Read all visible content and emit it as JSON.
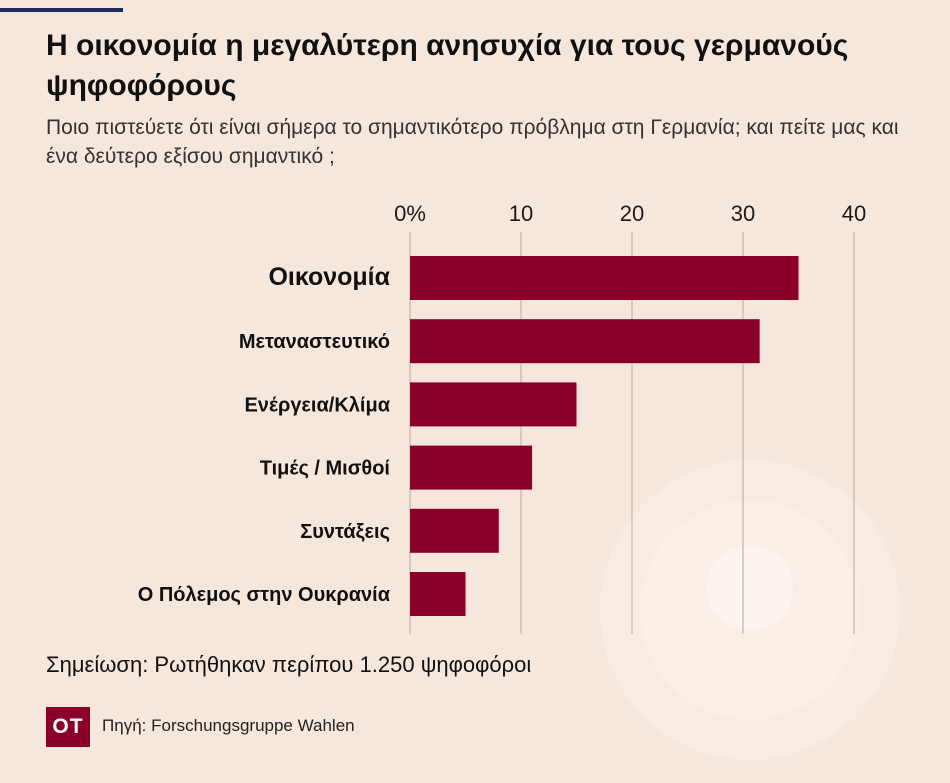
{
  "title": "Η οικονομία η μεγαλύτερη ανησυχία για τους γερμανούς ψηφοφόρους",
  "subtitle": "Ποιο πιστεύετε ότι είναι σήμερα το σημαντικότερο πρόβλημα στη Γερμανία; και πείτε μας και ένα δεύτερο εξίσου σημαντικό ;",
  "note": "Σημείωση: Ρωτήθηκαν περίπου 1.250 ψηφοφόροι",
  "logo_text": "OT",
  "source": "Πηγή: Forschungsgruppe Wahlen",
  "colors": {
    "bar": "#8b0029",
    "background": "#f6e7dc",
    "accent_rule": "#1f2a5c",
    "grid": "#c9b8ab"
  },
  "chart_data": {
    "type": "bar",
    "orientation": "horizontal",
    "categories": [
      "Οικονομία",
      "Μεταναστευτικό",
      "Ενέργεια/Κλίμα",
      "Τιμές / Μισθοί",
      "Συντάξεις",
      "Ο Πόλεμος στην Ουκρανία"
    ],
    "values": [
      35,
      31.5,
      15,
      11,
      8,
      5
    ],
    "xlim": [
      0,
      40
    ],
    "ticks": [
      0,
      10,
      20,
      30,
      40
    ],
    "tick_labels": [
      "0%",
      "10",
      "20",
      "30",
      "40"
    ],
    "grid": true,
    "title": "",
    "xlabel": "",
    "ylabel": ""
  }
}
